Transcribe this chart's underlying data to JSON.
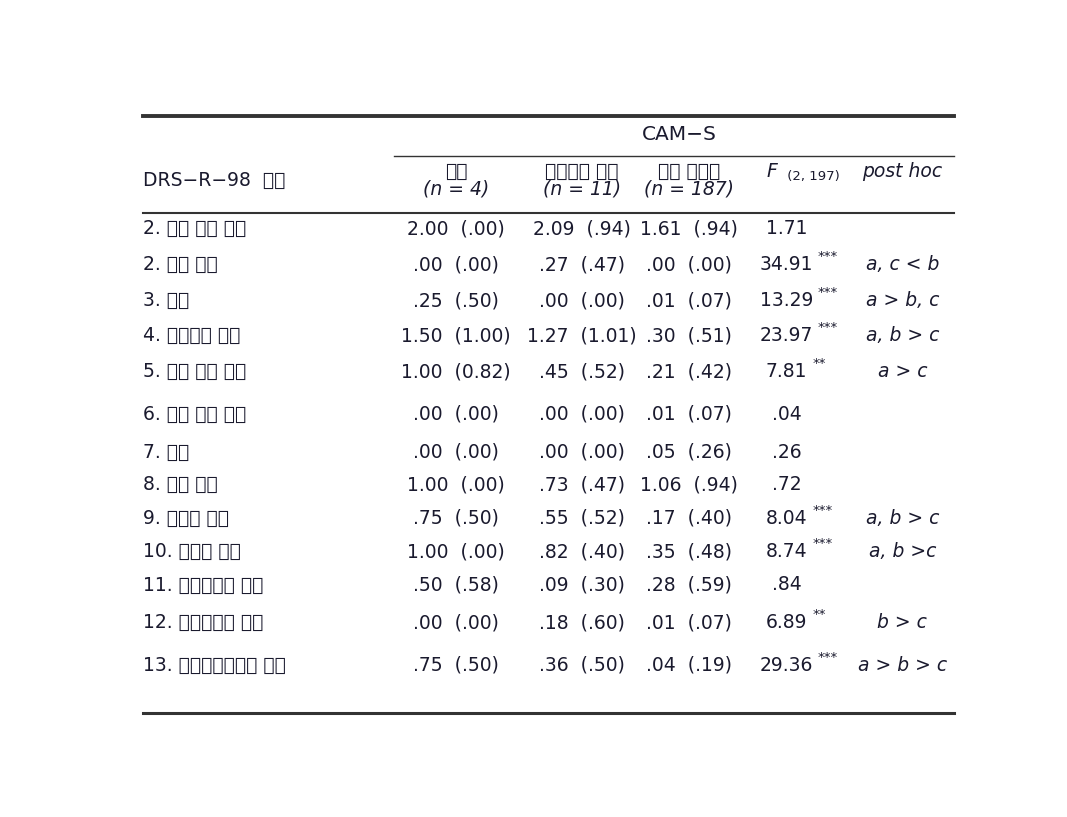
{
  "title": "CAM−S",
  "col_label": "DRS−R−98  문항",
  "col_headers": {
    "a_line1": "섬망",
    "b_line1": "아증후군 섬망",
    "c_line1": "섬망 미발생",
    "a_line2": "(n = 4)",
    "b_line2": "(n = 11)",
    "c_line2": "(n = 187)"
  },
  "rows": [
    {
      "label": "2. 수면 주기 이상",
      "a": "2.00  (.00)",
      "b": "2.09  (.94)",
      "c": "1.61  (.94)",
      "F": "1.71",
      "F_stars": "",
      "posthoc": ""
    },
    {
      "label": "2. 감각 이상",
      "a": ".00  (.00)",
      "b": ".27  (.47)",
      "c": ".00  (.00)",
      "F": "34.91",
      "F_stars": "***",
      "posthoc": "a, c < b"
    },
    {
      "label": "3. 망상",
      "a": ".25  (.50)",
      "b": ".00  (.00)",
      "c": ".01  (.07)",
      "F": "13.29",
      "F_stars": "***",
      "posthoc": "a > b, c"
    },
    {
      "label": "4. 불안정한 정동",
      "a": "1.50  (1.00)",
      "b": "1.27  (1.01)",
      "c": ".30  (.51)",
      "F": "23.97",
      "F_stars": "***",
      "posthoc": "a, b > c"
    },
    {
      "label": "5. 언어 능력 저하",
      "a": "1.00  (0.82)",
      "b": ".45  (.52)",
      "c": ".21  (.42)",
      "F": "7.81",
      "F_stars": "**",
      "posthoc": "a > c"
    },
    {
      "label": "6. 사고 과정 이상",
      "a": ".00  (.00)",
      "b": ".00  (.00)",
      "c": ".01  (.07)",
      "F": ".04",
      "F_stars": "",
      "posthoc": ""
    },
    {
      "label": "7. 초조",
      "a": ".00  (.00)",
      "b": ".00  (.00)",
      "c": ".05  (.26)",
      "F": ".26",
      "F_stars": "",
      "posthoc": ""
    },
    {
      "label": "8. 운동 저하",
      "a": "1.00  (.00)",
      "b": ".73  (.47)",
      "c": "1.06  (.94)",
      "F": ".72",
      "F_stars": "",
      "posthoc": ""
    },
    {
      "label": "9. 지남력 저하",
      "a": ".75  (.50)",
      "b": ".55  (.52)",
      "c": ".17  (.40)",
      "F": "8.04",
      "F_stars": "***",
      "posthoc": "a, b > c"
    },
    {
      "label": "10. 주의력 저하",
      "a": "1.00  (.00)",
      "b": ".82  (.40)",
      "c": ".35  (.48)",
      "F": "8.74",
      "F_stars": "***",
      "posthoc": "a, b >c"
    },
    {
      "label": "11. 단기기억력 저하",
      "a": ".50  (.58)",
      "b": ".09  (.30)",
      "c": ".28  (.59)",
      "F": ".84",
      "F_stars": "",
      "posthoc": ""
    },
    {
      "label": "12. 장기기억력 저하",
      "a": ".00  (.00)",
      "b": ".18  (.60)",
      "c": ".01  (.07)",
      "F": "6.89",
      "F_stars": "**",
      "posthoc": "b > c"
    },
    {
      "label": "13. 시공간인식능력 저하",
      "a": ".75  (.50)",
      "b": ".36  (.50)",
      "c": ".04  (.19)",
      "F": "29.36",
      "F_stars": "***",
      "posthoc": "a > b > c"
    }
  ],
  "bg_color": "#ffffff",
  "text_color": "#1a1a2e",
  "line_color": "#333333",
  "font_size": 13.5,
  "small_font_size": 9.5,
  "header_font_size": 13.5
}
